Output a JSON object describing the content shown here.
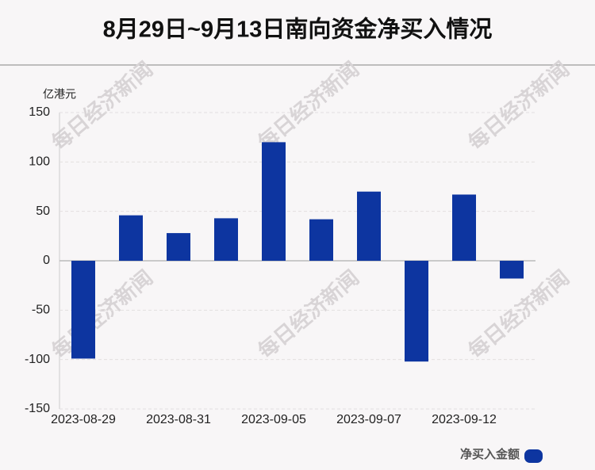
{
  "chart_data": {
    "type": "bar",
    "title": "8月29日~9月13日南向资金净买入情况",
    "y_unit": "亿港元",
    "watermark": "每日经济新闻",
    "categories": [
      "2023-08-29",
      null,
      "2023-08-31",
      null,
      "2023-09-05",
      null,
      "2023-09-07",
      null,
      "2023-09-12",
      null
    ],
    "series": [
      {
        "name": "净买入金额",
        "color": "#0d35a0",
        "values": [
          -99,
          46,
          28,
          43,
          120,
          42,
          70,
          -102,
          67,
          -18
        ]
      }
    ],
    "ylim": [
      -150,
      150
    ],
    "yticks": [
      -150,
      -100,
      -50,
      0,
      50,
      100,
      150
    ],
    "grid": true,
    "legend": "bottom-right"
  }
}
